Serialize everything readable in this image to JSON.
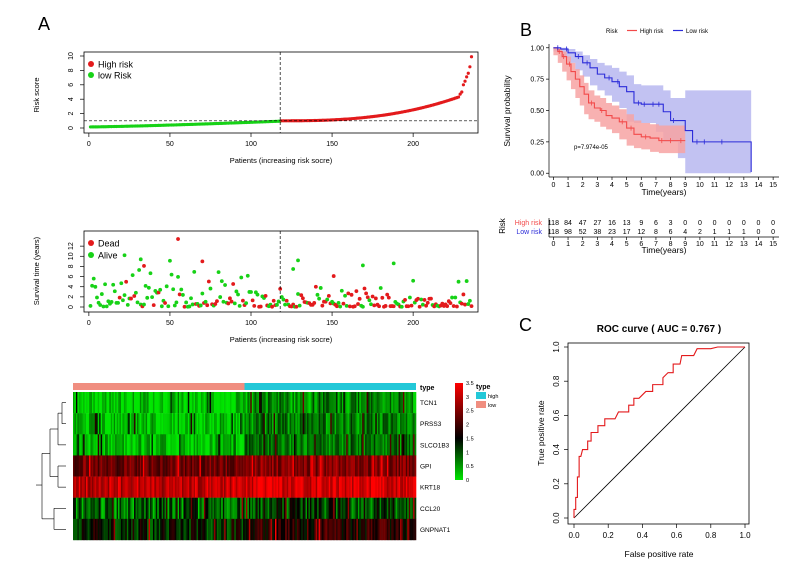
{
  "panel_labels": {
    "a": "A",
    "b": "B",
    "c": "C"
  },
  "colors": {
    "high_risk_point": "#e31a1c",
    "low_risk_point": "#17d217",
    "dead_point": "#e31a1c",
    "alive_point": "#17d217",
    "km_high_line": "#f24a4a",
    "km_high_band": "#f7a3a3",
    "km_low_line": "#2b2bd9",
    "km_low_band": "#aeaeee",
    "heat_type_high": "#23c8d8",
    "heat_type_low": "#f08e80",
    "heat_low": "#00e600",
    "heat_mid": "#000000",
    "heat_high": "#ff0000",
    "roc_line": "#e31a1c"
  },
  "chart_data": [
    {
      "id": "risk-score",
      "type": "scatter",
      "xlabel": "Patients (increasing risk socre)",
      "ylabel": "Risk score",
      "xlim": [
        -3,
        240
      ],
      "ylim": [
        0,
        10
      ],
      "xticks": [
        0,
        50,
        100,
        150,
        200
      ],
      "yticks": [
        0,
        2,
        4,
        6,
        8,
        10
      ],
      "cutoff_x": 118,
      "cutoff_y": 1,
      "legend": [
        "High risk",
        "low Risk"
      ],
      "legend_position": "top-left",
      "series": [
        {
          "name": "low Risk",
          "n": 118,
          "score_at_start": 0.15,
          "score_at_cutoff": 0.95
        },
        {
          "name": "High risk",
          "n": 118,
          "score_at_start": 1.0,
          "score_at_end": 9.9,
          "top_points": [
            [
              229,
              4.7
            ],
            [
              230,
              5.0
            ],
            [
              231,
              6.0
            ],
            [
              232,
              6.5
            ],
            [
              233,
              7.1
            ],
            [
              234,
              7.6
            ],
            [
              235,
              8.5
            ],
            [
              236,
              9.9
            ]
          ]
        }
      ]
    },
    {
      "id": "survival-time",
      "type": "scatter",
      "xlabel": "Patients (increasing risk socre)",
      "ylabel": "Survival time (years)",
      "xlim": [
        -3,
        240
      ],
      "ylim": [
        0,
        14
      ],
      "xticks": [
        0,
        50,
        100,
        150,
        200
      ],
      "yticks": [
        0,
        2,
        4,
        6,
        8,
        10,
        12
      ],
      "cutoff_x": 118,
      "legend": [
        "Dead",
        "Alive"
      ],
      "legend_position": "top-left",
      "n_patients": 236,
      "highlight_points": [
        {
          "status": "Dead",
          "x": 55,
          "y": 13.4
        },
        {
          "status": "Alive",
          "x": 22,
          "y": 10.2
        },
        {
          "status": "Alive",
          "x": 32,
          "y": 9.4
        },
        {
          "status": "Alive",
          "x": 129,
          "y": 9.2
        },
        {
          "status": "Dead",
          "x": 70,
          "y": 9.0
        },
        {
          "status": "Alive",
          "x": 188,
          "y": 8.6
        },
        {
          "status": "Dead",
          "x": 34,
          "y": 8.1
        },
        {
          "status": "Alive",
          "x": 169,
          "y": 8.2
        },
        {
          "status": "Alive",
          "x": 126,
          "y": 7.5
        },
        {
          "status": "Dead",
          "x": 151,
          "y": 6.1
        }
      ]
    },
    {
      "id": "km",
      "type": "line",
      "title": "Risk",
      "xlabel": "Time(years)",
      "ylabel": "Survival probability",
      "xlim": [
        -0.3,
        15.4
      ],
      "ylim": [
        -0.03,
        1.03
      ],
      "xticks": [
        0,
        1,
        2,
        3,
        4,
        5,
        6,
        7,
        8,
        9,
        10,
        11,
        12,
        13,
        14,
        15
      ],
      "yticks": [
        0.0,
        0.25,
        0.5,
        0.75,
        1.0
      ],
      "ytick_labels": [
        "0.00",
        "0.25",
        "0.50",
        "0.75",
        "1.00"
      ],
      "legend_position": "top",
      "annotation": "p=7.974e-05",
      "series": [
        {
          "name": "High risk",
          "points": [
            [
              0,
              1.0
            ],
            [
              0.3,
              0.97
            ],
            [
              0.6,
              0.93
            ],
            [
              0.9,
              0.87
            ],
            [
              1.2,
              0.81
            ],
            [
              1.5,
              0.75
            ],
            [
              1.8,
              0.69
            ],
            [
              2.1,
              0.63
            ],
            [
              2.4,
              0.56
            ],
            [
              2.8,
              0.52
            ],
            [
              3.2,
              0.5
            ],
            [
              3.6,
              0.46
            ],
            [
              4.0,
              0.44
            ],
            [
              4.5,
              0.41
            ],
            [
              5.0,
              0.36
            ],
            [
              5.5,
              0.31
            ],
            [
              6.0,
              0.29
            ],
            [
              6.6,
              0.28
            ],
            [
              7.2,
              0.26
            ],
            [
              7.8,
              0.26
            ],
            [
              8.3,
              0.26
            ],
            [
              9.0,
              0.26
            ]
          ],
          "ci_upper": [
            1.0,
            0.99,
            0.97,
            0.93,
            0.88,
            0.83,
            0.78,
            0.72,
            0.66,
            0.62,
            0.6,
            0.56,
            0.54,
            0.51,
            0.47,
            0.42,
            0.4,
            0.39,
            0.38,
            0.38,
            0.38,
            0.38
          ],
          "ci_lower": [
            1.0,
            0.94,
            0.88,
            0.81,
            0.74,
            0.67,
            0.6,
            0.54,
            0.47,
            0.43,
            0.41,
            0.37,
            0.35,
            0.32,
            0.27,
            0.22,
            0.2,
            0.19,
            0.17,
            0.16,
            0.16,
            0.16
          ]
        },
        {
          "name": "Low risk",
          "points": [
            [
              0,
              1.0
            ],
            [
              0.5,
              0.99
            ],
            [
              1.0,
              0.96
            ],
            [
              1.5,
              0.93
            ],
            [
              2.0,
              0.88
            ],
            [
              2.5,
              0.84
            ],
            [
              3.0,
              0.79
            ],
            [
              3.5,
              0.76
            ],
            [
              4.0,
              0.73
            ],
            [
              4.5,
              0.69
            ],
            [
              5.0,
              0.65
            ],
            [
              5.5,
              0.56
            ],
            [
              6.0,
              0.55
            ],
            [
              6.5,
              0.55
            ],
            [
              7.0,
              0.55
            ],
            [
              7.5,
              0.49
            ],
            [
              8.0,
              0.42
            ],
            [
              8.5,
              0.42
            ],
            [
              9.0,
              0.34
            ],
            [
              9.5,
              0.25
            ],
            [
              11.0,
              0.25
            ],
            [
              12.0,
              0.25
            ],
            [
              13.0,
              0.25
            ],
            [
              13.5,
              0.25
            ],
            [
              13.5,
              0.01
            ]
          ],
          "ci_upper": [
            1.0,
            1.0,
            0.99,
            0.97,
            0.94,
            0.91,
            0.88,
            0.86,
            0.84,
            0.81,
            0.78,
            0.71,
            0.7,
            0.7,
            0.7,
            0.66,
            0.6,
            0.6,
            0.66,
            0.66,
            0.66,
            0.66,
            0.66,
            0.66,
            0.66
          ],
          "ci_lower": [
            1.0,
            0.97,
            0.92,
            0.88,
            0.82,
            0.77,
            0.7,
            0.66,
            0.62,
            0.57,
            0.52,
            0.41,
            0.4,
            0.4,
            0.4,
            0.33,
            0.25,
            0.25,
            0.12,
            0.0,
            0.0,
            0.0,
            0.0,
            0.0,
            0.0
          ]
        }
      ],
      "risk_table": {
        "label": "Risk",
        "xlabel": "Time(years)",
        "rows": [
          {
            "name": "High risk",
            "counts": [
              "118",
              "84",
              "47",
              "27",
              "16",
              "13",
              "9",
              "6",
              "3",
              "0",
              "0",
              "0",
              "0",
              "0",
              "0",
              "0"
            ]
          },
          {
            "name": "Low risk",
            "counts": [
              "118",
              "98",
              "52",
              "38",
              "23",
              "17",
              "12",
              "8",
              "6",
              "4",
              "2",
              "1",
              "1",
              "1",
              "0",
              "0"
            ]
          }
        ]
      }
    },
    {
      "id": "heatmap",
      "type": "heatmap",
      "genes": [
        "TCN1",
        "PRSS3",
        "SLCO1B3",
        "GPI",
        "KRT18",
        "CCL20",
        "GNPNAT1"
      ],
      "row_base_expression": [
        0.35,
        0.45,
        0.5,
        2.45,
        3.05,
        0.95,
        1.55
      ],
      "row_variation": [
        0.55,
        0.5,
        0.45,
        0.45,
        0.45,
        0.7,
        0.6
      ],
      "n_columns": 236,
      "annotation_label": "type",
      "annotation_groups": [
        {
          "name": "low",
          "count": 118
        },
        {
          "name": "high",
          "count": 118
        }
      ],
      "annotation_legend": {
        "title": "type",
        "items": [
          "high",
          "low"
        ]
      },
      "color_scale": {
        "min": 0,
        "max": 3.5,
        "ticks": [
          "0",
          "0.5",
          "1",
          "1.5",
          "2",
          "2.5",
          "3",
          "3.5"
        ]
      }
    },
    {
      "id": "roc",
      "type": "line",
      "title": "ROC curve ( AUC =  0.767 )",
      "xlabel": "False positive rate",
      "ylabel": "True positive rate",
      "xlim": [
        0,
        1
      ],
      "ylim": [
        0,
        1
      ],
      "xticks": [
        0.0,
        0.2,
        0.4,
        0.6,
        0.8,
        1.0
      ],
      "yticks": [
        0.0,
        0.2,
        0.4,
        0.6,
        0.8,
        1.0
      ],
      "points": [
        [
          0,
          0
        ],
        [
          0,
          0.05
        ],
        [
          0.01,
          0.05
        ],
        [
          0.01,
          0.12
        ],
        [
          0.02,
          0.12
        ],
        [
          0.02,
          0.24
        ],
        [
          0.03,
          0.24
        ],
        [
          0.03,
          0.36
        ],
        [
          0.04,
          0.36
        ],
        [
          0.05,
          0.4
        ],
        [
          0.08,
          0.4
        ],
        [
          0.08,
          0.45
        ],
        [
          0.1,
          0.45
        ],
        [
          0.1,
          0.5
        ],
        [
          0.14,
          0.5
        ],
        [
          0.14,
          0.54
        ],
        [
          0.18,
          0.54
        ],
        [
          0.18,
          0.58
        ],
        [
          0.24,
          0.58
        ],
        [
          0.26,
          0.62
        ],
        [
          0.32,
          0.62
        ],
        [
          0.32,
          0.66
        ],
        [
          0.35,
          0.66
        ],
        [
          0.35,
          0.7
        ],
        [
          0.38,
          0.7
        ],
        [
          0.42,
          0.74
        ],
        [
          0.46,
          0.74
        ],
        [
          0.46,
          0.78
        ],
        [
          0.52,
          0.78
        ],
        [
          0.52,
          0.82
        ],
        [
          0.55,
          0.85
        ],
        [
          0.58,
          0.85
        ],
        [
          0.58,
          0.9
        ],
        [
          0.62,
          0.9
        ],
        [
          0.63,
          0.95
        ],
        [
          0.7,
          0.95
        ],
        [
          0.72,
          0.99
        ],
        [
          0.8,
          0.99
        ],
        [
          0.84,
          1.0
        ],
        [
          1.0,
          1.0
        ]
      ]
    }
  ]
}
